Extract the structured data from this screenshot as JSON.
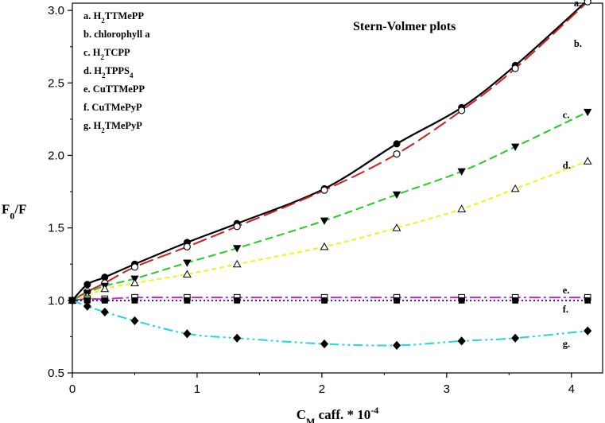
{
  "chart_data": {
    "type": "line",
    "title": "Stern-Volmer plots",
    "xlabel": {
      "main": "C",
      "sub": "M",
      "rest": " caff. * 10",
      "sup": "-4"
    },
    "ylabel": {
      "main": "F",
      "sub": "0",
      "rest": "/F"
    },
    "xlim": [
      0,
      4.25
    ],
    "ylim": [
      0.5,
      3.05
    ],
    "xticks": [
      0,
      1,
      2,
      3,
      4
    ],
    "yticks": [
      0.5,
      1.0,
      1.5,
      2.0,
      2.5,
      3.0
    ],
    "xtick_labels": [
      "0",
      "1",
      "2",
      "3",
      "4"
    ],
    "ytick_labels": [
      "0.5",
      "1.0",
      "1.5",
      "2.0",
      "2.5",
      "3.0"
    ],
    "legend": [
      {
        "prefix": "a. H",
        "sub": "2",
        "rest": "TTMePP"
      },
      {
        "prefix": "b. chlorophyll a",
        "sub": "",
        "rest": ""
      },
      {
        "prefix": "c. H",
        "sub": "2",
        "rest": "TCPP"
      },
      {
        "prefix": "d. H",
        "sub": "2",
        "rest": "TPPS",
        "sub2": "4"
      },
      {
        "prefix": "e. CuTTMePP",
        "sub": "",
        "rest": ""
      },
      {
        "prefix": "f. CuTMePyP",
        "sub": "",
        "rest": ""
      },
      {
        "prefix": "g. H",
        "sub": "2",
        "rest": "TMePyP"
      }
    ],
    "series": [
      {
        "name": "a.",
        "color": "#000000",
        "dash": "",
        "marker": "circle-filled",
        "labelAt": [
          4.02,
          3.05
        ],
        "x": [
          0,
          0.12,
          0.26,
          0.5,
          0.92,
          1.32,
          2.02,
          2.6,
          3.12,
          3.55,
          4.13
        ],
        "y": [
          1.0,
          1.11,
          1.16,
          1.25,
          1.4,
          1.53,
          1.77,
          2.08,
          2.33,
          2.62,
          3.07
        ]
      },
      {
        "name": "b.",
        "color": "#cc1f1f",
        "dash": "18,6",
        "marker": "circle-open",
        "labelAt": [
          4.02,
          2.77
        ],
        "x": [
          0,
          0.12,
          0.26,
          0.5,
          0.92,
          1.32,
          2.02,
          2.6,
          3.12,
          3.55,
          4.13
        ],
        "y": [
          1.0,
          1.06,
          1.12,
          1.23,
          1.37,
          1.51,
          1.76,
          2.01,
          2.31,
          2.6,
          3.06
        ]
      },
      {
        "name": "c.",
        "color": "#22cc22",
        "dash": "10,5",
        "marker": "triangle-down-filled",
        "labelAt": [
          3.93,
          2.28
        ],
        "x": [
          0,
          0.12,
          0.26,
          0.5,
          0.92,
          1.32,
          2.02,
          2.6,
          3.12,
          3.55,
          4.13
        ],
        "y": [
          1.0,
          1.05,
          1.1,
          1.15,
          1.26,
          1.36,
          1.55,
          1.73,
          1.89,
          2.06,
          2.3
        ]
      },
      {
        "name": "d.",
        "color": "#f2f21a",
        "dash": "6,4",
        "marker": "triangle-up-open",
        "labelAt": [
          3.93,
          1.93
        ],
        "x": [
          0,
          0.12,
          0.26,
          0.5,
          0.92,
          1.32,
          2.02,
          2.6,
          3.12,
          3.55,
          4.13
        ],
        "y": [
          1.0,
          1.03,
          1.08,
          1.12,
          1.18,
          1.25,
          1.37,
          1.5,
          1.63,
          1.77,
          1.96
        ]
      },
      {
        "name": "e.",
        "color": "#cc22cc",
        "dash": "14,4,3,4",
        "marker": "square-open",
        "labelAt": [
          3.93,
          1.07
        ],
        "x": [
          0,
          0.12,
          0.26,
          0.5,
          0.92,
          1.32,
          2.02,
          2.6,
          3.12,
          3.55,
          4.13
        ],
        "y": [
          1.0,
          1.01,
          1.01,
          1.02,
          1.02,
          1.02,
          1.02,
          1.02,
          1.02,
          1.02,
          1.02
        ]
      },
      {
        "name": "f.",
        "color": "#1a1aa0",
        "dash": "2,3",
        "marker": "square-filled",
        "labelAt": [
          3.93,
          0.94
        ],
        "x": [
          0,
          0.12,
          0.26,
          0.5,
          0.92,
          1.32,
          2.02,
          2.6,
          3.12,
          3.55,
          4.13
        ],
        "y": [
          1.0,
          1.0,
          1.0,
          1.0,
          1.0,
          1.0,
          1.0,
          1.0,
          1.0,
          1.0,
          1.0
        ]
      },
      {
        "name": "g.",
        "color": "#22d6e0",
        "dash": "12,4,3,4,3,4",
        "marker": "diamond-filled",
        "labelAt": [
          3.93,
          0.7
        ],
        "x": [
          0,
          0.12,
          0.26,
          0.5,
          0.92,
          1.32,
          2.02,
          2.6,
          3.12,
          3.55,
          4.13
        ],
        "y": [
          1.0,
          0.96,
          0.92,
          0.86,
          0.77,
          0.74,
          0.7,
          0.69,
          0.72,
          0.74,
          0.79
        ]
      }
    ]
  }
}
